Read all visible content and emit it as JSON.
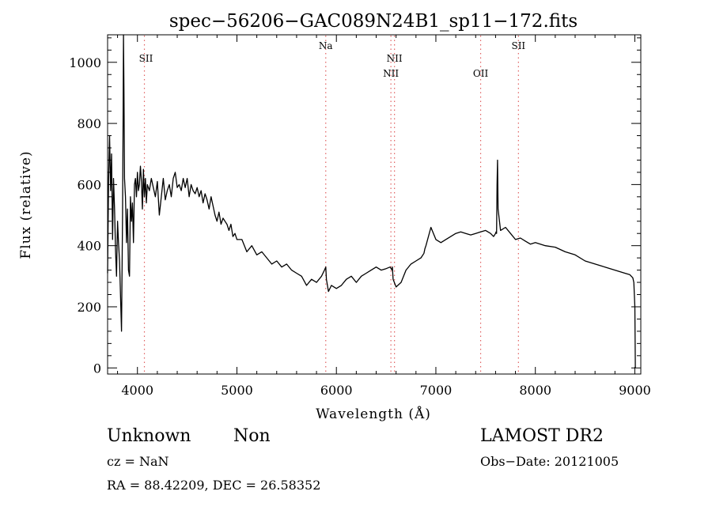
{
  "chart_data": {
    "type": "line",
    "title": "spec−56206−GAC089N24B1_sp11−172.fits",
    "xlabel": "Wavelength (Å)",
    "ylabel": "Flux (relative)",
    "xlim": [
      3700,
      9060
    ],
    "ylim": [
      -20,
      1090
    ],
    "xticks": [
      4000,
      5000,
      6000,
      7000,
      8000,
      9000
    ],
    "yticks": [
      0,
      200,
      400,
      600,
      800,
      1000
    ],
    "grid": false,
    "legend": "none",
    "line_color": "#000000",
    "marker_color": "#e06060",
    "lines": [
      {
        "label": "SII",
        "x": 4070,
        "row": 1
      },
      {
        "label": "Na",
        "x": 5893,
        "row": 0
      },
      {
        "label": "NII",
        "x": 6548,
        "row": 2
      },
      {
        "label": "NII",
        "x": 6584,
        "row": 1
      },
      {
        "label": "OII",
        "x": 7450,
        "row": 2
      },
      {
        "label": "SII",
        "x": 7830,
        "row": 0
      }
    ],
    "series": [
      {
        "x": [
          3700,
          3710,
          3720,
          3730,
          3740,
          3750,
          3760,
          3770,
          3780,
          3790,
          3800,
          3810,
          3820,
          3830,
          3840,
          3850,
          3855,
          3860,
          3865,
          3870,
          3880,
          3890,
          3900,
          3910,
          3920,
          3930,
          3940,
          3950,
          3960,
          3970,
          3980,
          3990,
          4000,
          4010,
          4020,
          4030,
          4040,
          4050,
          4060,
          4070,
          4080,
          4090,
          4100,
          4120,
          4140,
          4160,
          4180,
          4200,
          4220,
          4240,
          4260,
          4280,
          4300,
          4320,
          4340,
          4360,
          4380,
          4400,
          4420,
          4440,
          4460,
          4480,
          4500,
          4520,
          4540,
          4560,
          4580,
          4600,
          4620,
          4640,
          4660,
          4680,
          4700,
          4720,
          4740,
          4760,
          4780,
          4800,
          4820,
          4840,
          4860,
          4880,
          4900,
          4920,
          4940,
          4960,
          4980,
          5000,
          5050,
          5100,
          5150,
          5200,
          5250,
          5300,
          5350,
          5400,
          5450,
          5500,
          5550,
          5600,
          5650,
          5700,
          5750,
          5800,
          5850,
          5880,
          5893,
          5900,
          5920,
          5950,
          6000,
          6050,
          6100,
          6150,
          6200,
          6250,
          6300,
          6350,
          6400,
          6450,
          6500,
          6540,
          6560,
          6563,
          6570,
          6600,
          6650,
          6700,
          6750,
          6800,
          6850,
          6880,
          6890,
          6900,
          6950,
          7000,
          7050,
          7100,
          7150,
          7200,
          7250,
          7300,
          7350,
          7400,
          7450,
          7500,
          7550,
          7580,
          7600,
          7605,
          7610,
          7615,
          7620,
          7625,
          7650,
          7700,
          7750,
          7800,
          7850,
          7900,
          7950,
          8000,
          8100,
          8200,
          8300,
          8400,
          8500,
          8600,
          8700,
          8800,
          8900,
          8950,
          8980,
          8990,
          9000,
          9005
        ],
        "y": [
          310,
          620,
          760,
          580,
          700,
          420,
          620,
          520,
          380,
          300,
          480,
          410,
          350,
          240,
          120,
          500,
          760,
          1090,
          900,
          620,
          560,
          410,
          520,
          320,
          300,
          560,
          480,
          540,
          410,
          600,
          620,
          560,
          640,
          580,
          600,
          660,
          610,
          520,
          650,
          560,
          620,
          540,
          600,
          580,
          620,
          590,
          560,
          610,
          500,
          560,
          620,
          550,
          580,
          600,
          560,
          620,
          640,
          590,
          600,
          580,
          620,
          590,
          620,
          560,
          600,
          580,
          570,
          590,
          560,
          580,
          540,
          570,
          550,
          520,
          560,
          530,
          500,
          480,
          510,
          470,
          490,
          480,
          470,
          450,
          470,
          430,
          440,
          420,
          420,
          380,
          400,
          370,
          380,
          360,
          340,
          350,
          330,
          340,
          320,
          310,
          300,
          270,
          290,
          280,
          300,
          320,
          330,
          290,
          250,
          270,
          260,
          270,
          290,
          300,
          280,
          300,
          310,
          320,
          330,
          320,
          325,
          330,
          320,
          330,
          290,
          265,
          280,
          320,
          340,
          350,
          360,
          375,
          390,
          400,
          460,
          420,
          410,
          420,
          430,
          440,
          445,
          440,
          435,
          440,
          445,
          450,
          440,
          430,
          440,
          445,
          440,
          600,
          680,
          520,
          450,
          460,
          440,
          420,
          425,
          415,
          405,
          410,
          400,
          395,
          380,
          370,
          350,
          340,
          330,
          320,
          310,
          305,
          295,
          280,
          200,
          0
        ]
      }
    ]
  },
  "footer": {
    "object_class": "Unknown",
    "object_subclass": "Non",
    "redshift": "cz = NaN",
    "coordinates": "RA =  88.42209, DEC =  26.58352",
    "survey": "LAMOST DR2",
    "obs_date": "Obs−Date: 20121005"
  }
}
